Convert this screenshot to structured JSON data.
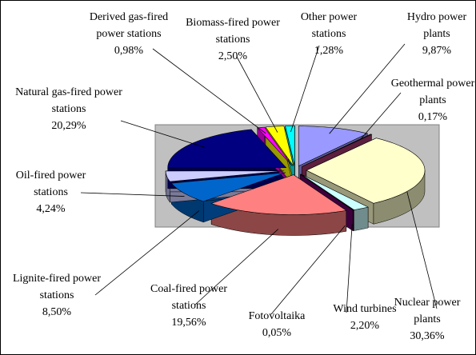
{
  "chart_data": {
    "type": "pie3d",
    "categories": [
      "Hydro power plants",
      "Geothermal power plants",
      "Nuclear power plants",
      "Wind turbines",
      "Fotovoltaika",
      "Coal-fired power stations",
      "Lignite-fired power stations",
      "Oil-fired power stations",
      "Natural gas-fired power stations",
      "Derived gas-fired power stations",
      "Biomass-fired power stations",
      "Other power stations"
    ],
    "values": [
      9.87,
      0.17,
      30.36,
      2.2,
      0.05,
      19.56,
      8.5,
      4.24,
      20.29,
      0.98,
      2.5,
      1.28
    ],
    "value_labels": [
      "9,87%",
      "0,17%",
      "30,36%",
      "2,20%",
      "0,05%",
      "19,56%",
      "8,50%",
      "4,24%",
      "20,29%",
      "0,98%",
      "2,50%",
      "1,28%"
    ],
    "colors": [
      "#9999ff",
      "#993366",
      "#ffffcc",
      "#ccffff",
      "#660066",
      "#ff8080",
      "#0066cc",
      "#ccccff",
      "#000080",
      "#ff00ff",
      "#ffff00",
      "#00ffff"
    ]
  }
}
